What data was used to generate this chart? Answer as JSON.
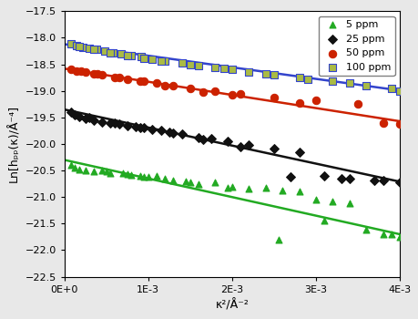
{
  "xlabel": "κ²/Å⁻²",
  "ylabel": "Ln[hₚₚ(κ)/Å⁻⁴]",
  "xlim": [
    0,
    0.004
  ],
  "ylim": [
    -22.5,
    -17.5
  ],
  "yticks": [
    -22.5,
    -22.0,
    -21.5,
    -21.0,
    -20.5,
    -20.0,
    -19.5,
    -19.0,
    -18.5,
    -18.0,
    -17.5
  ],
  "background_color": "#e8e8e8",
  "plot_bg": "#ffffff",
  "legend_fontsize": 8,
  "tick_fontsize": 8,
  "label_fontsize": 9,
  "series": [
    {
      "label": "5 ppm",
      "marker": "^",
      "marker_fc": "#22aa22",
      "marker_ec": "#22aa22",
      "marker_size": 5,
      "line_color": "#22aa22",
      "fit_intercept": -20.3,
      "fit_slope": -350,
      "data_x": [
        8e-05,
        0.00012,
        0.00018,
        0.00025,
        0.00035,
        0.00045,
        0.00055,
        0.0007,
        0.0008,
        0.0009,
        0.001,
        0.0011,
        0.0012,
        0.0013,
        0.00145,
        0.0016,
        0.0018,
        0.002,
        0.0022,
        0.0024,
        0.0026,
        0.0028,
        0.003,
        0.0032,
        0.0034,
        0.0036,
        0.0038,
        0.004,
        0.0005,
        0.00075,
        0.00095,
        0.0015,
        0.00195,
        0.00255,
        0.0031,
        0.0039
      ],
      "data_y": [
        -20.4,
        -20.45,
        -20.48,
        -20.5,
        -20.52,
        -20.5,
        -20.55,
        -20.55,
        -20.58,
        -20.6,
        -20.62,
        -20.6,
        -20.65,
        -20.68,
        -20.7,
        -20.75,
        -20.72,
        -20.8,
        -20.85,
        -20.82,
        -20.88,
        -20.9,
        -21.05,
        -21.08,
        -21.12,
        -21.62,
        -21.7,
        -21.75,
        -20.52,
        -20.57,
        -20.62,
        -20.72,
        -20.82,
        -21.8,
        -21.45,
        -21.7
      ]
    },
    {
      "label": "25 ppm",
      "marker": "D",
      "marker_fc": "#111111",
      "marker_ec": "#111111",
      "marker_size": 5,
      "line_color": "#111111",
      "fit_intercept": -19.35,
      "fit_slope": -340,
      "data_x": [
        8e-05,
        0.00012,
        0.00018,
        0.00025,
        0.00035,
        0.00045,
        0.00055,
        0.00065,
        0.00075,
        0.00085,
        0.00095,
        0.00105,
        0.00115,
        0.00125,
        0.0014,
        0.0016,
        0.00175,
        0.00195,
        0.0022,
        0.0025,
        0.0028,
        0.0031,
        0.0034,
        0.0037,
        0.004,
        0.0003,
        0.0006,
        0.0009,
        0.0013,
        0.00165,
        0.0021,
        0.0027,
        0.0033,
        0.0038
      ],
      "data_y": [
        -19.4,
        -19.45,
        -19.48,
        -19.52,
        -19.55,
        -19.58,
        -19.6,
        -19.62,
        -19.65,
        -19.68,
        -19.7,
        -19.72,
        -19.75,
        -19.78,
        -19.82,
        -19.88,
        -19.9,
        -19.95,
        -20.02,
        -20.08,
        -20.15,
        -20.6,
        -20.65,
        -20.68,
        -20.72,
        -19.5,
        -19.6,
        -19.7,
        -19.8,
        -19.92,
        -20.05,
        -20.62,
        -20.65,
        -20.68
      ]
    },
    {
      "label": "50 ppm",
      "marker": "o",
      "marker_fc": "#cc2200",
      "marker_ec": "#cc2200",
      "marker_size": 6,
      "line_color": "#cc2200",
      "fit_intercept": -18.58,
      "fit_slope": -248,
      "data_x": [
        8e-05,
        0.00015,
        0.00025,
        0.00035,
        0.00045,
        0.0006,
        0.00075,
        0.0009,
        0.0011,
        0.0013,
        0.0015,
        0.0018,
        0.0021,
        0.0025,
        0.003,
        0.0035,
        0.004,
        0.0002,
        0.0004,
        0.00065,
        0.00095,
        0.0012,
        0.00165,
        0.002,
        0.0028,
        0.0038
      ],
      "data_y": [
        -18.6,
        -18.62,
        -18.65,
        -18.68,
        -18.7,
        -18.75,
        -18.78,
        -18.82,
        -18.85,
        -18.9,
        -18.95,
        -19.0,
        -19.05,
        -19.12,
        -19.18,
        -19.25,
        -19.62,
        -18.62,
        -18.68,
        -18.75,
        -18.82,
        -18.9,
        -19.02,
        -19.08,
        -19.22,
        -19.6
      ]
    },
    {
      "label": "100 ppm",
      "marker": "s",
      "marker_fc": "#aabb44",
      "marker_ec": "#3344cc",
      "marker_size": 6,
      "line_color": "#3344cc",
      "fit_intercept": -18.12,
      "fit_slope": -218,
      "data_x": [
        8e-05,
        0.00015,
        0.00022,
        0.0003,
        0.00038,
        0.00048,
        0.00058,
        0.00068,
        0.0008,
        0.00092,
        0.00105,
        0.0012,
        0.0014,
        0.0016,
        0.0018,
        0.002,
        0.0022,
        0.0025,
        0.0028,
        0.0032,
        0.0036,
        0.004,
        0.00018,
        0.00035,
        0.00055,
        0.00075,
        0.00095,
        0.00115,
        0.0015,
        0.0019,
        0.0024,
        0.0029,
        0.0034,
        0.0039
      ],
      "data_y": [
        -18.12,
        -18.15,
        -18.18,
        -18.2,
        -18.22,
        -18.25,
        -18.28,
        -18.3,
        -18.33,
        -18.36,
        -18.4,
        -18.43,
        -18.48,
        -18.52,
        -18.56,
        -18.6,
        -18.64,
        -18.7,
        -18.75,
        -18.82,
        -18.9,
        -19.0,
        -18.16,
        -18.22,
        -18.28,
        -18.33,
        -18.38,
        -18.43,
        -18.5,
        -18.58,
        -18.68,
        -18.78,
        -18.85,
        -18.95
      ]
    }
  ]
}
